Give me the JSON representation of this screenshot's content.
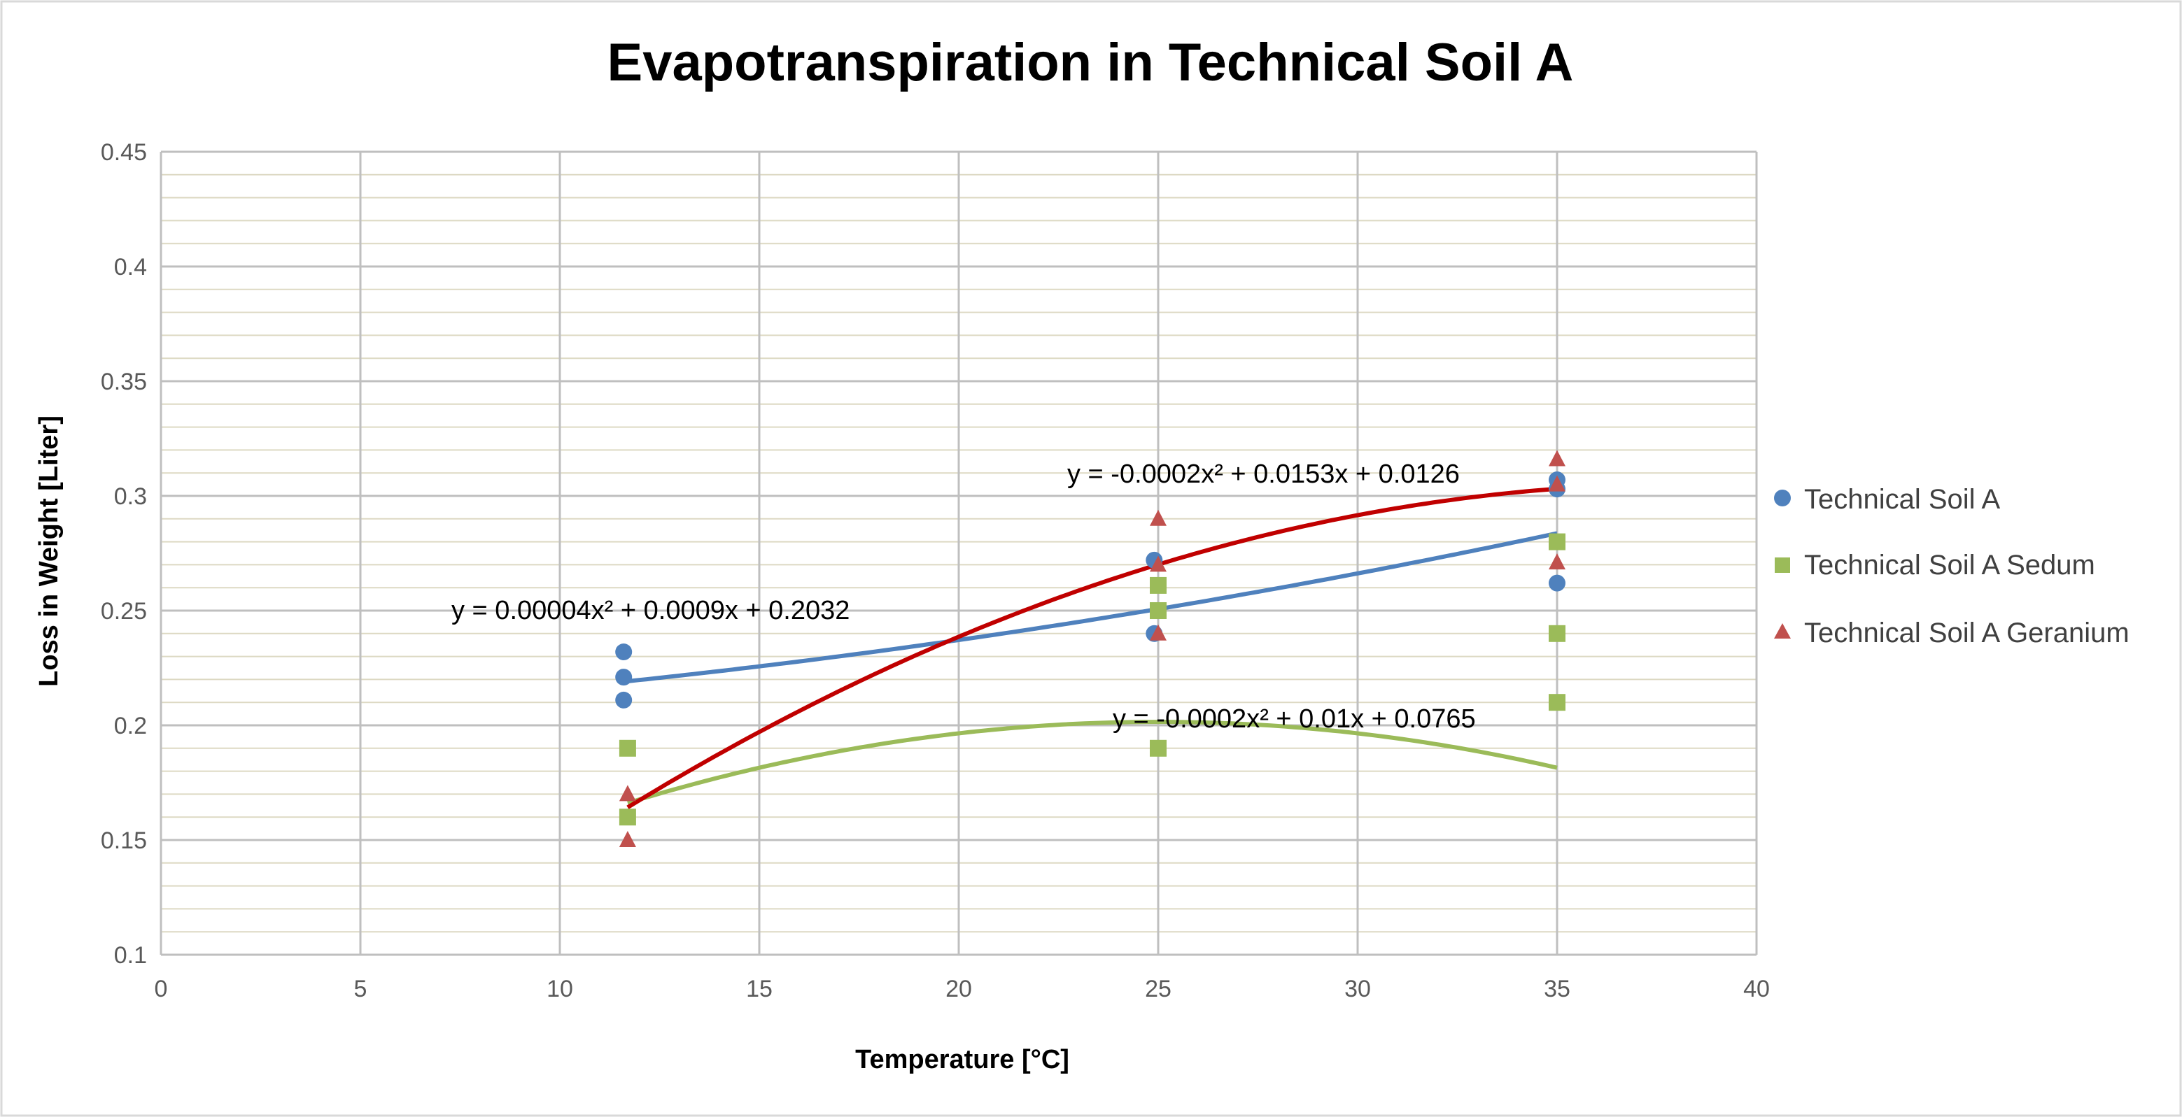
{
  "chart_data": {
    "type": "scatter",
    "title": "Evapotranspiration in Technical Soil A",
    "xlabel": "Temperature [°C]",
    "ylabel": "Loss in Weight [Liter]",
    "xlim": [
      0,
      40
    ],
    "ylim": [
      0.1,
      0.45
    ],
    "xticks": [
      0,
      5,
      10,
      15,
      20,
      25,
      30,
      35,
      40
    ],
    "yticks": [
      0.1,
      0.15,
      0.2,
      0.25,
      0.3,
      0.35,
      0.4,
      0.45
    ],
    "xtick_labels": [
      "0",
      "5",
      "10",
      "15",
      "20",
      "25",
      "30",
      "35",
      "40"
    ],
    "ytick_labels": [
      "0.1",
      "0.15",
      "0.2",
      "0.25",
      "0.3",
      "0.35",
      "0.4",
      "0.45"
    ],
    "minor_y_step": 0.01,
    "legend_position": "right",
    "series": [
      {
        "name": "Technical Soil A",
        "marker": "circle",
        "color": "#4F81BD",
        "points": [
          [
            11.6,
            0.232
          ],
          [
            11.6,
            0.221
          ],
          [
            11.6,
            0.211
          ],
          [
            24.9,
            0.272
          ],
          [
            24.9,
            0.24
          ],
          [
            35,
            0.307
          ],
          [
            35,
            0.262
          ],
          [
            35,
            0.303
          ]
        ],
        "trendline": {
          "a": 4e-05,
          "b": 0.0009,
          "c": 0.2032,
          "from": 11.6,
          "to": 35,
          "color": "#4F81BD"
        },
        "equation": "y = 0.00004x² + 0.0009x + 0.2032"
      },
      {
        "name": "Technical Soil A Sedum",
        "marker": "square",
        "color": "#9BBB59",
        "points": [
          [
            11.7,
            0.19
          ],
          [
            11.7,
            0.16
          ],
          [
            25,
            0.261
          ],
          [
            25,
            0.25
          ],
          [
            25,
            0.19
          ],
          [
            35,
            0.28
          ],
          [
            35,
            0.24
          ],
          [
            35,
            0.21
          ]
        ],
        "trendline": {
          "a": -0.0002,
          "b": 0.01,
          "c": 0.0765,
          "from": 11.7,
          "to": 35,
          "color": "#9BBB59"
        },
        "equation": "y = -0.0002x² + 0.01x + 0.0765"
      },
      {
        "name": "Technical Soil A Geranium",
        "marker": "triangle",
        "color": "#C0504D",
        "points": [
          [
            11.7,
            0.17
          ],
          [
            11.7,
            0.15
          ],
          [
            25,
            0.29
          ],
          [
            25,
            0.27
          ],
          [
            25,
            0.24
          ],
          [
            35,
            0.316
          ],
          [
            35,
            0.305
          ],
          [
            35,
            0.271
          ]
        ],
        "trendline": {
          "a": -0.0002,
          "b": 0.0153,
          "c": 0.0126,
          "from": 11.7,
          "to": 35,
          "color": "#C00000"
        },
        "equation": "y = -0.0002x² + 0.0153x + 0.0126"
      }
    ]
  },
  "colors": {
    "major_grid": "#BFBFBF",
    "minor_grid": "#DDD9C3",
    "tick_text": "#595959",
    "border": "#D9D9D9"
  }
}
